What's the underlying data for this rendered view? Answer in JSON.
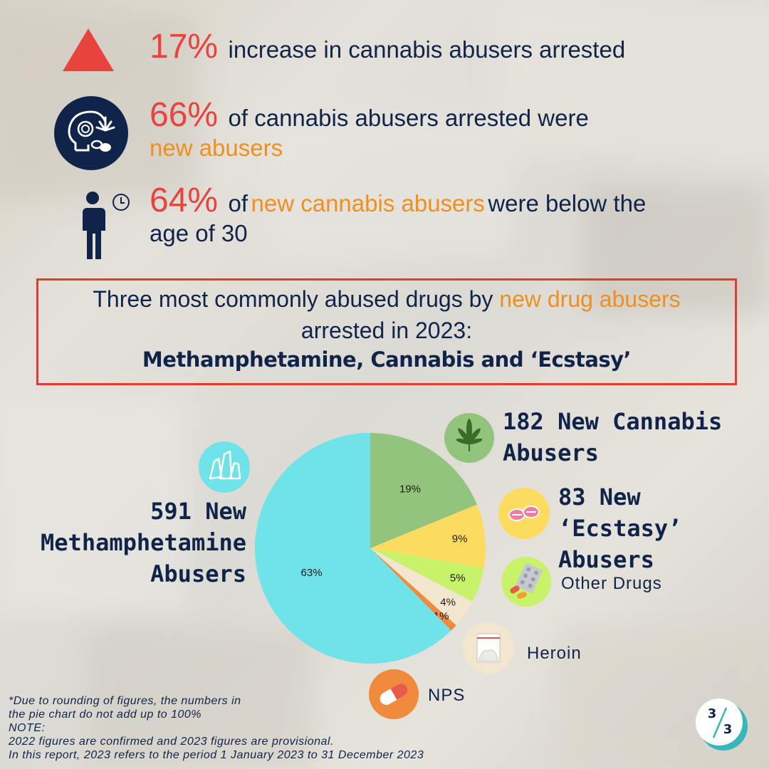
{
  "stats": [
    {
      "pct": "17%",
      "text": "increase in cannabis abusers arrested"
    },
    {
      "pct": "66%",
      "text": "of cannabis abusers arrested were",
      "highlight": "new abusers"
    },
    {
      "pct": "64%",
      "text_pre": "of",
      "highlight": "new cannabis abusers",
      "text_post": "were below the",
      "text_line2": "age of 30"
    }
  ],
  "callout": {
    "line1_pre": "Three most commonly abused drugs by",
    "line1_highlight": "new drug abusers",
    "line2": "arrested in 2023:",
    "line3": "Methamphetamine, Cannabis and ‘Ecstasy’"
  },
  "legend": {
    "meth": [
      "591 New",
      "Methamphetamine",
      "Abusers"
    ],
    "cannabis": [
      "182 New Cannabis",
      "Abusers"
    ],
    "ecstasy": [
      "83 New ‘Ecstasy’",
      "Abusers"
    ],
    "other": "Other Drugs",
    "heroin": "Heroin",
    "nps": "NPS"
  },
  "chart_data": {
    "type": "pie",
    "slices": [
      {
        "name": "Cannabis",
        "value": 19,
        "label": "19%",
        "color": "#93c47d"
      },
      {
        "name": "'Ecstasy'",
        "value": 9,
        "label": "9%",
        "color": "#fcdc5e"
      },
      {
        "name": "Other Drugs",
        "value": 5,
        "label": "5%",
        "color": "#c8f26a"
      },
      {
        "name": "Heroin",
        "value": 4,
        "label": "4%",
        "color": "#f2e6cf"
      },
      {
        "name": "NPS",
        "value": 1,
        "label": "1%",
        "color": "#f08a3c"
      },
      {
        "name": "Methamphetamine",
        "value": 63,
        "label": "63%",
        "color": "#6fe3e8"
      }
    ],
    "start_angle": "12 o'clock, clockwise"
  },
  "footnote": {
    "line1": "*Due to rounding of figures, the numbers in",
    "line2": "the pie chart do not add up to 100%",
    "note_title": "NOTE:",
    "note_line1": "2022 figures are confirmed and 2023 figures are provisional.",
    "note_line2": "In this report, 2023 refers to the period 1 January 2023 to 31 December 2023"
  },
  "page_badge": {
    "num": "3",
    "den": "3"
  },
  "colors": {
    "accent_red": "#e8433d",
    "navy": "#10244a",
    "orange": "#f08f1e"
  }
}
